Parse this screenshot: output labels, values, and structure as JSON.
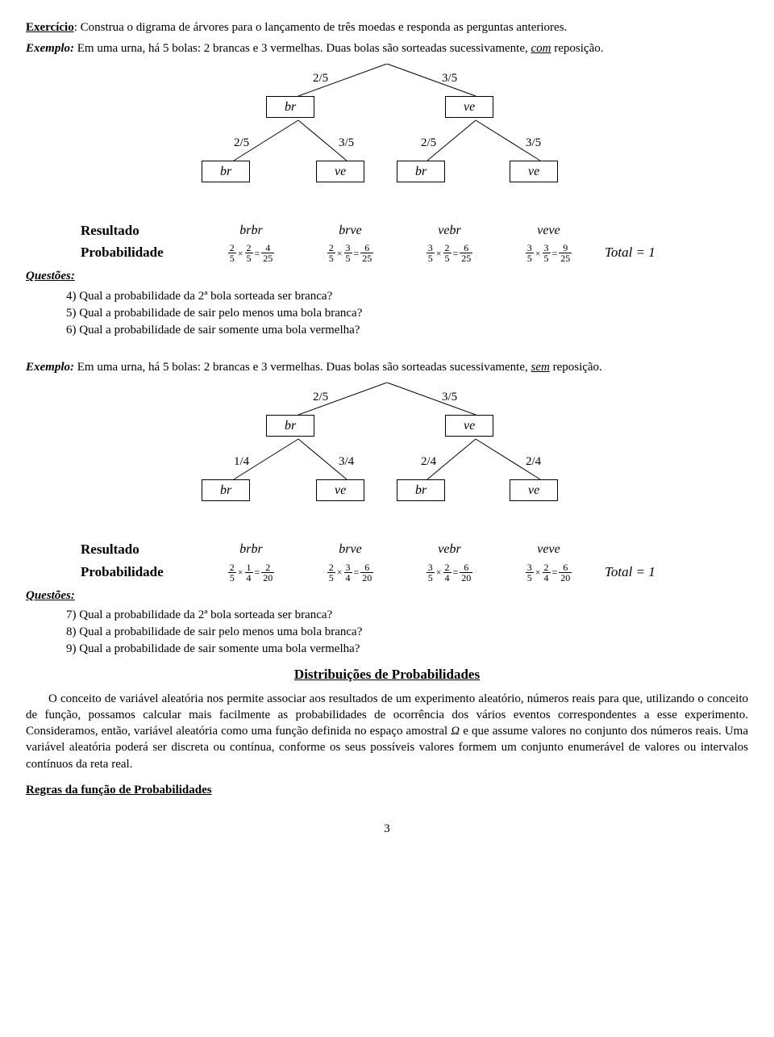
{
  "intro": {
    "exercicio_label": "Exercício",
    "exercicio_text": ": Construa  o digrama de árvores para o lançamento de três moedas e responda as perguntas anteriores.",
    "exemplo1_label": "Exemplo:",
    "exemplo1_text": " Em uma urna, há 5 bolas: 2 brancas e 3 vermelhas. Duas bolas são sorteadas sucessivamente, ",
    "exemplo1_u": "com",
    "exemplo1_after": "  reposição."
  },
  "tree1": {
    "top_left_prob": "2/5",
    "top_right_prob": "3/5",
    "top_left_node": "br",
    "top_right_node": "ve",
    "second_probs": [
      "2/5",
      "3/5",
      "2/5",
      "3/5"
    ],
    "second_nodes": [
      "br",
      "ve",
      "br",
      "ve"
    ]
  },
  "res1": {
    "resultado_label": "Resultado",
    "prob_label": "Probabilidade",
    "outcomes": [
      "brbr",
      "brve",
      "vebr",
      "veve"
    ],
    "fracs": [
      {
        "a_n": "2",
        "a_d": "5",
        "b_n": "2",
        "b_d": "5",
        "r_n": "4",
        "r_d": "25"
      },
      {
        "a_n": "2",
        "a_d": "5",
        "b_n": "3",
        "b_d": "5",
        "r_n": "6",
        "r_d": "25"
      },
      {
        "a_n": "3",
        "a_d": "5",
        "b_n": "2",
        "b_d": "5",
        "r_n": "6",
        "r_d": "25"
      },
      {
        "a_n": "3",
        "a_d": "5",
        "b_n": "3",
        "b_d": "5",
        "r_n": "9",
        "r_d": "25"
      }
    ],
    "total": "Total = 1"
  },
  "questoes_label": "Questões:",
  "q1": [
    {
      "n": "4)",
      "t": "Qual a probabilidade da 2ª bola sorteada ser branca?"
    },
    {
      "n": "5)",
      "t": "Qual a probabilidade de sair pelo menos uma bola branca?"
    },
    {
      "n": "6)",
      "t": "Qual a probabilidade de sair somente uma bola vermelha?"
    }
  ],
  "exemplo2": {
    "label": "Exemplo:",
    "text": " Em uma urna, há 5 bolas: 2 brancas e 3 vermelhas. Duas bolas são sorteadas sucessivamente, ",
    "u": "sem",
    "after": "  reposição."
  },
  "tree2": {
    "top_left_prob": "2/5",
    "top_right_prob": "3/5",
    "top_left_node": "br",
    "top_right_node": "ve",
    "second_probs": [
      "1/4",
      "3/4",
      "2/4",
      "2/4"
    ],
    "second_nodes": [
      "br",
      "ve",
      "br",
      "ve"
    ]
  },
  "res2": {
    "resultado_label": "Resultado",
    "prob_label": "Probabilidade",
    "outcomes": [
      "brbr",
      "brve",
      "vebr",
      "veve"
    ],
    "fracs": [
      {
        "a_n": "2",
        "a_d": "5",
        "b_n": "1",
        "b_d": "4",
        "r_n": "2",
        "r_d": "20"
      },
      {
        "a_n": "2",
        "a_d": "5",
        "b_n": "3",
        "b_d": "4",
        "r_n": "6",
        "r_d": "20"
      },
      {
        "a_n": "3",
        "a_d": "5",
        "b_n": "2",
        "b_d": "4",
        "r_n": "6",
        "r_d": "20"
      },
      {
        "a_n": "3",
        "a_d": "5",
        "b_n": "2",
        "b_d": "4",
        "r_n": "6",
        "r_d": "20"
      }
    ],
    "total": "Total = 1"
  },
  "q2": [
    {
      "n": "7)",
      "t": "Qual a probabilidade da 2ª bola sorteada ser branca?"
    },
    {
      "n": "8)",
      "t": "Qual a probabilidade de sair pelo menos uma bola branca?"
    },
    {
      "n": "9)",
      "t": "Qual a probabilidade de sair somente uma bola vermelha?"
    }
  ],
  "dist_title": "Distribuições de Probabilidades",
  "para": {
    "p1a": "O conceito de variável aleatória nos permite associar aos resultados de um experimento aleatório, números reais para que, utilizando o conceito de função, possamos calcular mais facilmente as probabilidades de ocorrência dos vários eventos correspondentes a esse experimento. Consideramos, então, variável aleatória como uma função definida no espaço amostral ",
    "omega": "Ω",
    "p1b": " e que assume valores no conjunto dos números reais. Uma variável aleatória poderá ser discreta ou contínua, conforme os seus possíveis valores formem um conjunto enumerável de valores ou intervalos contínuos da reta real."
  },
  "regras": "Regras da função de Probabilidades",
  "pagenum": "3",
  "style": {
    "line_color": "#000000",
    "box_border": "#000000",
    "bg": "#ffffff"
  }
}
